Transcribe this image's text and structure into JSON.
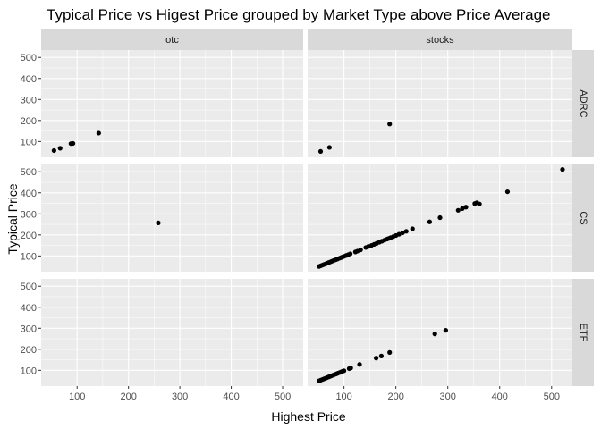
{
  "chart_data": {
    "type": "scatter",
    "title": "Typical Price vs Higest Price grouped by Market Type above Price Average",
    "xlabel": "Highest Price",
    "ylabel": "Typical Price",
    "xlim": [
      30,
      540
    ],
    "ylim": [
      25,
      535
    ],
    "x_ticks": [
      100,
      200,
      300,
      400,
      500
    ],
    "y_ticks": [
      100,
      200,
      300,
      400,
      500
    ],
    "grid": true,
    "colors": {
      "panel_bg": "#ebebeb",
      "strip_bg": "#d9d9d9",
      "grid_major": "#ffffff",
      "point": "#000000"
    },
    "columns": [
      "otc",
      "stocks"
    ],
    "rows": [
      "ADRC",
      "CS",
      "ETF"
    ],
    "panels": [
      {
        "column": "otc",
        "row": "ADRC",
        "points": [
          [
            55,
            57
          ],
          [
            67,
            68
          ],
          [
            88,
            90
          ],
          [
            92,
            91
          ],
          [
            142,
            140
          ]
        ]
      },
      {
        "column": "stocks",
        "row": "ADRC",
        "points": [
          [
            55,
            53
          ],
          [
            72,
            72
          ],
          [
            188,
            183
          ]
        ]
      },
      {
        "column": "otc",
        "row": "CS",
        "points": [
          [
            258,
            257
          ]
        ]
      },
      {
        "column": "stocks",
        "row": "CS",
        "points": [
          [
            52,
            50
          ],
          [
            55,
            53
          ],
          [
            58,
            56
          ],
          [
            61,
            59
          ],
          [
            64,
            62
          ],
          [
            67,
            65
          ],
          [
            70,
            68
          ],
          [
            73,
            71
          ],
          [
            76,
            74
          ],
          [
            79,
            77
          ],
          [
            82,
            80
          ],
          [
            85,
            83
          ],
          [
            88,
            86
          ],
          [
            91,
            89
          ],
          [
            94,
            92
          ],
          [
            97,
            95
          ],
          [
            100,
            98
          ],
          [
            104,
            102
          ],
          [
            108,
            106
          ],
          [
            112,
            110
          ],
          [
            122,
            119
          ],
          [
            126,
            123
          ],
          [
            132,
            129
          ],
          [
            142,
            140
          ],
          [
            147,
            145
          ],
          [
            153,
            150
          ],
          [
            158,
            155
          ],
          [
            163,
            160
          ],
          [
            168,
            165
          ],
          [
            173,
            170
          ],
          [
            178,
            175
          ],
          [
            183,
            180
          ],
          [
            186,
            183
          ],
          [
            190,
            187
          ],
          [
            195,
            192
          ],
          [
            200,
            197
          ],
          [
            206,
            203
          ],
          [
            213,
            210
          ],
          [
            220,
            217
          ],
          [
            232,
            229
          ],
          [
            265,
            262
          ],
          [
            285,
            282
          ],
          [
            320,
            317
          ],
          [
            328,
            325
          ],
          [
            335,
            332
          ],
          [
            352,
            349
          ],
          [
            356,
            353
          ],
          [
            361,
            347
          ],
          [
            415,
            405
          ],
          [
            521,
            511
          ]
        ]
      },
      {
        "column": "otc",
        "row": "ETF",
        "points": []
      },
      {
        "column": "stocks",
        "row": "ETF",
        "points": [
          [
            52,
            50
          ],
          [
            55,
            53
          ],
          [
            58,
            56
          ],
          [
            61,
            59
          ],
          [
            64,
            62
          ],
          [
            67,
            65
          ],
          [
            70,
            68
          ],
          [
            73,
            71
          ],
          [
            76,
            74
          ],
          [
            79,
            77
          ],
          [
            82,
            80
          ],
          [
            85,
            83
          ],
          [
            88,
            86
          ],
          [
            91,
            89
          ],
          [
            94,
            92
          ],
          [
            97,
            95
          ],
          [
            100,
            98
          ],
          [
            110,
            108
          ],
          [
            113,
            111
          ],
          [
            130,
            128
          ],
          [
            162,
            158
          ],
          [
            172,
            168
          ],
          [
            188,
            185
          ],
          [
            275,
            273
          ],
          [
            296,
            290
          ]
        ]
      }
    ]
  }
}
